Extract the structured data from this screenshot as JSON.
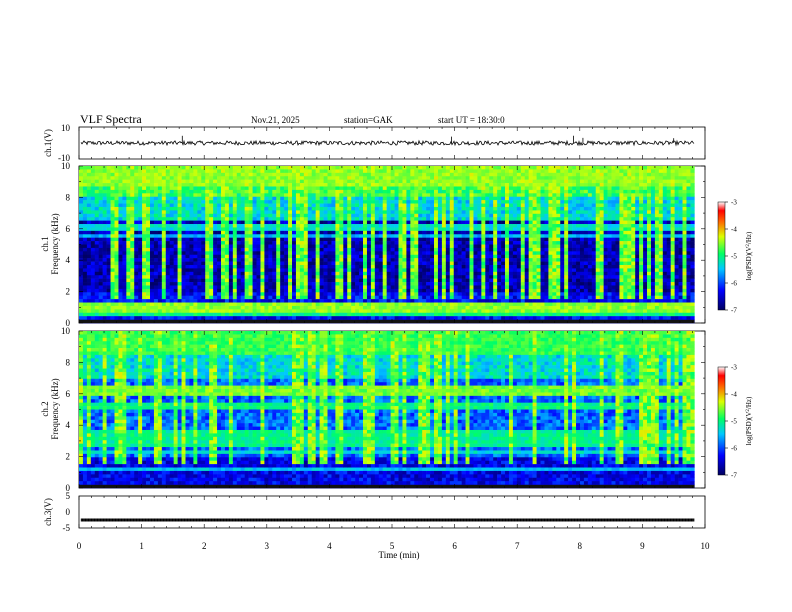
{
  "header": {
    "title": "VLF  Spectra",
    "date": "Nov.21, 2025",
    "station": "station=GAK",
    "start": "start  UT  =    18:30:0"
  },
  "chart_data": [
    {
      "type": "line",
      "id": "ch1-waveform",
      "ylabel": "ch.1(V)",
      "yticks": [
        "10",
        "-10"
      ],
      "ylim": [
        -10,
        10
      ],
      "baseline": 0,
      "spikes": [
        {
          "x": 1.65,
          "y": 4.5
        },
        {
          "x": 5.95,
          "y": 4.0
        },
        {
          "x": 7.9,
          "y": 4.5
        },
        {
          "x": 8.05,
          "y": 3.2
        },
        {
          "x": 9.5,
          "y": 3.0
        }
      ]
    },
    {
      "type": "heatmap",
      "id": "ch1-spectrogram",
      "ylabel": "ch.1\nFrequency (kHz)",
      "ylim": [
        0,
        10
      ],
      "yticks": [
        "0",
        "2",
        "4",
        "6",
        "8",
        "10"
      ],
      "colorbar": {
        "label": "log(PSD)(V²/Hz)",
        "range": [
          -7,
          -3
        ],
        "ticks": [
          "-3",
          "-4",
          "-5",
          "-6",
          "-7"
        ]
      }
    },
    {
      "type": "heatmap",
      "id": "ch2-spectrogram",
      "ylabel": "ch.2\nFrequency (kHz)",
      "ylim": [
        0,
        10
      ],
      "yticks": [
        "0",
        "2",
        "4",
        "6",
        "8",
        "10"
      ],
      "colorbar": {
        "label": "log(PSD)(V²/Hz)",
        "range": [
          -7,
          -3
        ],
        "ticks": [
          "-3",
          "-4",
          "-5",
          "-6",
          "-7"
        ]
      }
    },
    {
      "type": "line",
      "id": "ch3-waveform",
      "ylabel": "ch.3(V)",
      "yticks": [
        "5",
        "0",
        "-5"
      ],
      "ylim": [
        -5,
        5
      ],
      "baseline": -2.5
    }
  ],
  "xaxis": {
    "label": "Time  (min)",
    "range": [
      0,
      10
    ],
    "ticks": [
      "0",
      "1",
      "2",
      "3",
      "4",
      "5",
      "6",
      "7",
      "8",
      "9",
      "10"
    ],
    "data_end": 9.83
  }
}
